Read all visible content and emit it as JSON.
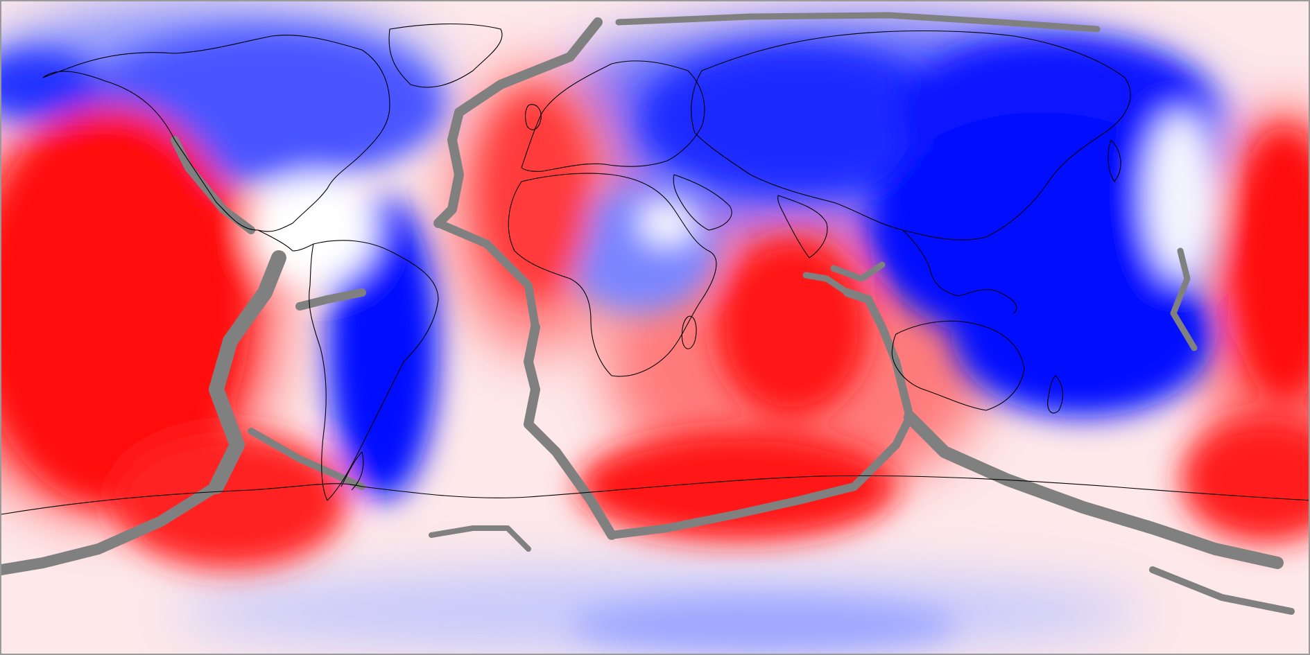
{
  "map": {
    "projection": "equirectangular",
    "extent": {
      "lon": [
        -180,
        180
      ],
      "lat": [
        -90,
        90
      ]
    },
    "field": {
      "colormap": "blue-white-red",
      "colors": {
        "positive": "#ff0000",
        "negative": "#0000ff",
        "neutral": "#ffffff",
        "mask": "#808080"
      }
    },
    "overlays": [
      "coastlines",
      "masked-ridge-zones"
    ],
    "frame": {
      "border_color": "#9a9a9a"
    }
  }
}
